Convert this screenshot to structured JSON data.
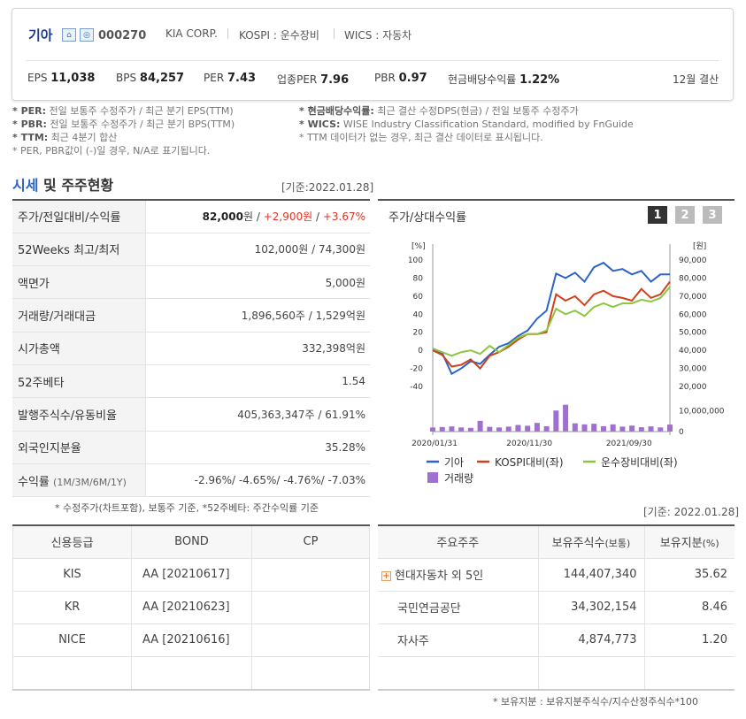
{
  "company": {
    "name": "기아",
    "code": "000270",
    "eng_name": "KIA CORP.",
    "market": "KOSPI : 운수장비",
    "wics": "WICS : 자동차"
  },
  "metrics": [
    {
      "label": "EPS",
      "value": "11,038"
    },
    {
      "label": "BPS",
      "value": "84,257"
    },
    {
      "label": "PER",
      "value": "7.43"
    },
    {
      "label": "업종PER",
      "value": "7.96"
    },
    {
      "label": "PBR",
      "value": "0.97"
    },
    {
      "label": "현금배당수익률",
      "value": "1.22%"
    }
  ],
  "settlement": "12월 결산",
  "notes_left": [
    {
      "key": "* PER:",
      "text": " 전일 보통주 수정주가 / 최근 분기 EPS(TTM)"
    },
    {
      "key": "* PBR:",
      "text": " 전일 보통주 수정주가 / 최근 분기 BPS(TTM)"
    },
    {
      "key": "* TTM:",
      "text": " 최근 4분기 합산"
    },
    {
      "key": "",
      "text": "* PER, PBR값이 (-)일 경우, N/A로 표기됩니다."
    }
  ],
  "notes_right": [
    {
      "key": "* 현금배당수익률:",
      "text": " 최근 결산 수정DPS(현금) / 전일 보통주 수정주가"
    },
    {
      "key": "* WICS:",
      "text": " WISE Industry Classification Standard, modified by FnGuide"
    },
    {
      "key": "",
      "text": "* TTM 데이터가 없는 경우, 최근 결산 데이터로 표시됩니다."
    }
  ],
  "section": {
    "title_blue": "시세",
    "title_rest": " 및 주주현황",
    "base_date": "[기준:2022.01.28]"
  },
  "quote": {
    "price_label": "주가/전일대비/수익률",
    "price": "82,000",
    "price_unit": "원",
    "change": "+2,900원",
    "rate": "+3.67%",
    "rows": [
      {
        "label": "52Weeks 최고/최저",
        "value": "102,000원 / 74,300원"
      },
      {
        "label": "액면가",
        "value": "5,000원"
      },
      {
        "label": "거래량/거래대금",
        "value": "1,896,560주 / 1,529억원"
      },
      {
        "label": "시가총액",
        "value": "332,398억원"
      },
      {
        "label": "52주베타",
        "value": "1.54"
      },
      {
        "label": "발행주식수/유동비율",
        "value": "405,363,347주 / 61.91%"
      },
      {
        "label": "외국인지분율",
        "value": "35.28%"
      }
    ],
    "returns_label": "수익률",
    "returns_sub": "(1M/3M/6M/1Y)",
    "returns_value": "-2.96%/ -4.65%/ -4.76%/ -7.03%",
    "footnote": "* 수정주가(차트포함), 보통주 기준, *52주베타: 주간수익률 기준"
  },
  "chart_panel": {
    "title": "주가/상대수익률",
    "pages": [
      "1",
      "2",
      "3"
    ],
    "colors": {
      "kia": "#2b63c7",
      "kospi": "#d2401a",
      "sector": "#8cc63f",
      "volume": "#a070d0"
    }
  },
  "chart_data": {
    "type": "line",
    "x_ticks": [
      "2020/01/31",
      "2020/11/30",
      "2021/09/30"
    ],
    "left_unit": "[%]",
    "right_unit": "[원]",
    "left_ticks": [
      100,
      80,
      60,
      40,
      20,
      0,
      -20,
      -40
    ],
    "right_ticks": [
      "90,000",
      "80,000",
      "70,000",
      "60,000",
      "50,000",
      "40,000",
      "30,000",
      "20,000"
    ],
    "left_range": [
      -40,
      100
    ],
    "volume_ticks": [
      "10,000,000",
      "0"
    ],
    "volume_range": [
      0,
      12000000
    ],
    "series": [
      {
        "name": "기아",
        "values": [
          2,
          -3,
          -26,
          -20,
          -12,
          -15,
          -5,
          4,
          8,
          16,
          22,
          35,
          44,
          85,
          80,
          86,
          76,
          92,
          97,
          88,
          90,
          84,
          88,
          76,
          84,
          84
        ]
      },
      {
        "name": "KOSPI대비(좌)",
        "values": [
          0,
          -5,
          -18,
          -16,
          -10,
          -20,
          -6,
          -2,
          4,
          12,
          18,
          18,
          20,
          62,
          55,
          60,
          50,
          62,
          66,
          60,
          58,
          55,
          68,
          58,
          62,
          76
        ]
      },
      {
        "name": "운수장비대비(좌)",
        "values": [
          2,
          -2,
          -6,
          -2,
          0,
          -4,
          5,
          -2,
          6,
          14,
          18,
          18,
          22,
          46,
          40,
          44,
          38,
          48,
          52,
          48,
          52,
          52,
          56,
          54,
          58,
          70
        ]
      }
    ],
    "volume": {
      "name": "거래량",
      "values": [
        2000000,
        2200000,
        2500000,
        2000000,
        1800000,
        5200000,
        2300000,
        2000000,
        2400000,
        3200000,
        2800000,
        4200000,
        2600000,
        10200000,
        13000000,
        4000000,
        3500000,
        3800000,
        2600000,
        3500000,
        2400000,
        2900000,
        2100000,
        2500000,
        2000000,
        3400000
      ]
    }
  },
  "credit": {
    "headers": [
      "신용등급",
      "BOND",
      "CP"
    ],
    "rows": [
      [
        "KIS",
        "AA   [20210617]",
        ""
      ],
      [
        "KR",
        "AA   [20210623]",
        ""
      ],
      [
        "NICE",
        "AA   [20210616]",
        ""
      ],
      [
        "",
        "",
        ""
      ]
    ]
  },
  "holders": {
    "base_date": "[기준: 2022.01.28]",
    "headers": {
      "name": "주요주주",
      "shares": "보유주식수",
      "shares_sub": "(보통)",
      "ratio": "보유지분",
      "ratio_sub": "(%)"
    },
    "rows": [
      {
        "name": "현대자동차 외 5인",
        "shares": "144,407,340",
        "ratio": "35.62"
      },
      {
        "name": "국민연금공단",
        "shares": "34,302,154",
        "ratio": "8.46"
      },
      {
        "name": "자사주",
        "shares": "4,874,773",
        "ratio": "1.20"
      },
      {
        "name": "",
        "shares": "",
        "ratio": ""
      }
    ],
    "footnote": "* 보유지분 : 보유지분주식수/지수산정주식수*100"
  }
}
